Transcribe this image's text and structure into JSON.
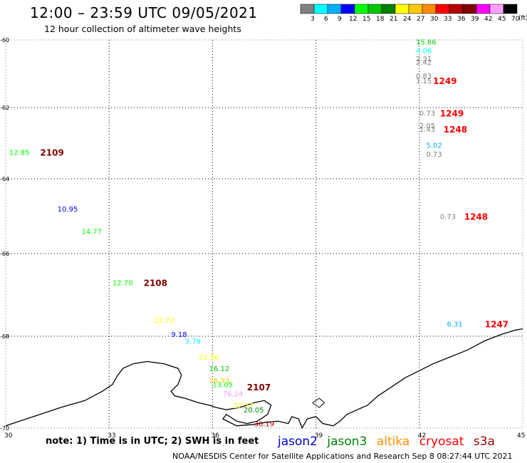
{
  "header": {
    "title": "12:00 – 23:59 UTC 09/05/2021",
    "subtitle": "12 hour collection of altimeter wave heights",
    "units": "(ft)"
  },
  "color_scale": {
    "labels": [
      "3",
      "6",
      "9",
      "12",
      "15",
      "18",
      "21",
      "24",
      "27",
      "30",
      "33",
      "36",
      "39",
      "42",
      "45",
      "70"
    ],
    "colors": [
      "#808080",
      "#00ffff",
      "#00b0ff",
      "#0000ff",
      "#00ff00",
      "#00c800",
      "#008000",
      "#ffff00",
      "#ffc800",
      "#ff8c00",
      "#ff0000",
      "#b40000",
      "#800000",
      "#ff00ff",
      "#ff9cff",
      "#000000"
    ]
  },
  "note": "note: 1) Time is in UTC; 2) SWH is in feet",
  "footer": "NOAA/NESDIS Center for Satellite Applications and Research   Sep  8 08:27:44 UTC 2021",
  "legend": [
    {
      "name": "jason2",
      "color": "#0000cc"
    },
    {
      "name": "jason3",
      "color": "#008000"
    },
    {
      "name": "altika",
      "color": "#ff8c00"
    },
    {
      "name": "cryosat",
      "color": "#ff0000"
    },
    {
      "name": "s3a",
      "color": "#990000"
    }
  ],
  "chart_data": {
    "type": "scatter",
    "title": "12 hour collection of altimeter wave heights",
    "xlim": [
      30,
      45
    ],
    "ylim": [
      -70,
      -60
    ],
    "xticks": [
      "30",
      "33",
      "36",
      "39",
      "42",
      "45"
    ],
    "yticks": [
      "-60",
      "-62",
      "-64",
      "-66",
      "-68",
      "-70"
    ],
    "grid": true,
    "wave_heights": [
      {
        "lon": 41.9,
        "lat": -60.05,
        "value": "15.86",
        "color": "#00c800"
      },
      {
        "lon": 41.9,
        "lat": -60.3,
        "value": "4.06",
        "color": "#00ffff"
      },
      {
        "lon": 41.9,
        "lat": -60.55,
        "value": "2.31",
        "color": "#808080"
      },
      {
        "lon": 41.9,
        "lat": -60.65,
        "value": "2.42",
        "color": "#808080"
      },
      {
        "lon": 41.9,
        "lat": -61.05,
        "value": "0.83",
        "color": "#808080"
      },
      {
        "lon": 41.9,
        "lat": -61.2,
        "value": "1.15",
        "color": "#808080"
      },
      {
        "lon": 42.0,
        "lat": -62.15,
        "value": "0.73",
        "color": "#808080"
      },
      {
        "lon": 42.0,
        "lat": -62.5,
        "value": "2.05",
        "color": "#808080"
      },
      {
        "lon": 42.0,
        "lat": -62.6,
        "value": "1.43",
        "color": "#808080"
      },
      {
        "lon": 42.2,
        "lat": -63.05,
        "value": "5.02",
        "color": "#00b0ff"
      },
      {
        "lon": 42.2,
        "lat": -63.3,
        "value": "0.73",
        "color": "#808080"
      },
      {
        "lon": 30.1,
        "lat": -63.25,
        "value": "12.85",
        "color": "#00ff00"
      },
      {
        "lon": 31.5,
        "lat": -64.8,
        "value": "10.95",
        "color": "#0000ff"
      },
      {
        "lon": 32.2,
        "lat": -65.4,
        "value": "14.77",
        "color": "#00ff00"
      },
      {
        "lon": 42.6,
        "lat": -65.0,
        "value": "0.73",
        "color": "#808080"
      },
      {
        "lon": 33.1,
        "lat": -66.7,
        "value": "12.70",
        "color": "#00ff00"
      },
      {
        "lon": 34.3,
        "lat": -67.6,
        "value": "22.72",
        "color": "#ffff00"
      },
      {
        "lon": 34.8,
        "lat": -67.95,
        "value": "9.18",
        "color": "#0000ff"
      },
      {
        "lon": 35.2,
        "lat": -68.1,
        "value": "3.79",
        "color": "#00ffff"
      },
      {
        "lon": 42.8,
        "lat": -67.7,
        "value": "6.31",
        "color": "#00b0ff"
      },
      {
        "lon": 35.6,
        "lat": -68.45,
        "value": "21.56",
        "color": "#ffff00"
      },
      {
        "lon": 35.9,
        "lat": -68.7,
        "value": "16.12",
        "color": "#00c800"
      },
      {
        "lon": 35.9,
        "lat": -68.95,
        "value": "26.93",
        "color": "#ffc800"
      },
      {
        "lon": 36.0,
        "lat": -69.05,
        "value": "13.05",
        "color": "#00ff00"
      },
      {
        "lon": 36.3,
        "lat": -69.25,
        "value": "76.24",
        "color": "#ff9cff"
      },
      {
        "lon": 36.6,
        "lat": -69.5,
        "value": "22.77",
        "color": "#ffff00"
      },
      {
        "lon": 36.9,
        "lat": -69.6,
        "value": "20.05",
        "color": "#008000"
      },
      {
        "lon": 37.2,
        "lat": -69.9,
        "value": "36.19",
        "color": "#b40000"
      }
    ],
    "pass_labels": [
      {
        "lon": 42.4,
        "lat": -61.2,
        "value": "1249",
        "color": "#ff0000"
      },
      {
        "lon": 42.6,
        "lat": -62.15,
        "value": "1249",
        "color": "#ff0000"
      },
      {
        "lon": 42.7,
        "lat": -62.6,
        "value": "1248",
        "color": "#ff0000"
      },
      {
        "lon": 31.0,
        "lat": -63.25,
        "value": "2109",
        "color": "#800000"
      },
      {
        "lon": 43.3,
        "lat": -65.0,
        "value": "1248",
        "color": "#ff0000"
      },
      {
        "lon": 34.0,
        "lat": -66.7,
        "value": "2108",
        "color": "#800000"
      },
      {
        "lon": 43.9,
        "lat": -67.7,
        "value": "1247",
        "color": "#ff0000"
      },
      {
        "lon": 37.0,
        "lat": -69.1,
        "value": "2107",
        "color": "#800000"
      }
    ]
  }
}
